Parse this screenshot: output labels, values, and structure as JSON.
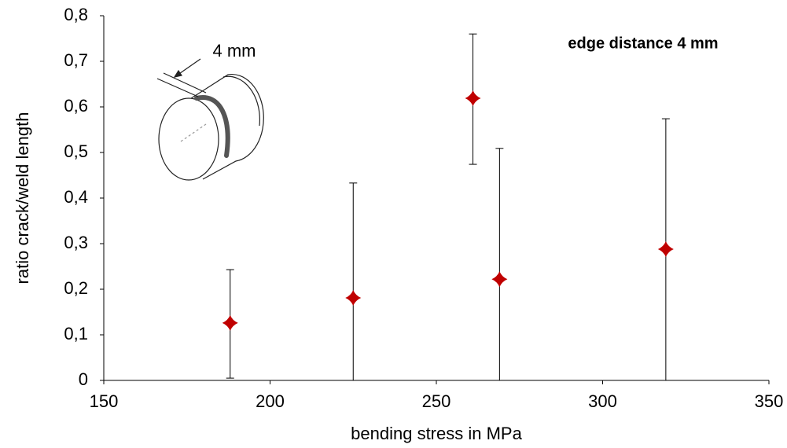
{
  "chart_data": {
    "type": "scatter",
    "x": [
      188,
      225,
      261,
      269,
      319
    ],
    "values": [
      0.126,
      0.181,
      0.619,
      0.222,
      0.288
    ],
    "error_minus": [
      0.121,
      0.181,
      0.145,
      0.222,
      0.288
    ],
    "error_plus": [
      0.117,
      0.252,
      0.141,
      0.287,
      0.286
    ],
    "color": "#c00000",
    "xlabel": "bending stress in MPa",
    "ylabel": "ratio crack/weld length",
    "annotations": [
      "edge distance 4 mm",
      "4 mm"
    ],
    "xlim": [
      150,
      350
    ],
    "xticks": [
      150,
      200,
      250,
      300,
      350
    ],
    "ylim": [
      0,
      0.8
    ],
    "yticks": [
      0,
      {
        "value": 0.1,
        "label": "0,1"
      },
      {
        "value": 0.2,
        "label": "0,2"
      },
      {
        "value": 0.3,
        "label": "0,3"
      },
      {
        "value": 0.4,
        "label": "0,4"
      },
      {
        "value": 0.5,
        "label": "0,5"
      },
      {
        "value": 0.6,
        "label": "0,6"
      },
      {
        "value": 0.7,
        "label": "0,7"
      },
      {
        "value": 0.8,
        "label": "0,8"
      }
    ],
    "grid": false
  }
}
